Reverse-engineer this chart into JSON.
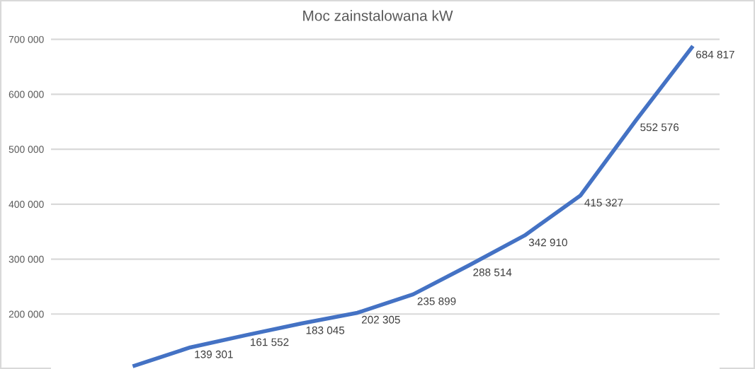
{
  "chart_data": {
    "type": "line",
    "title": "Moc zainstalowana kW",
    "categories": [
      null,
      null,
      null,
      null,
      null,
      null,
      null,
      null,
      null,
      null,
      null,
      null
    ],
    "series": [
      {
        "color": "#4472c4",
        "values": [
          null,
          106000,
          139301,
          161552,
          183045,
          202305,
          235899,
          288514,
          342910,
          415327,
          552576,
          684817
        ],
        "value_labels": [
          null,
          null,
          "139 301",
          "161 552",
          "183 045",
          "202 305",
          "235 899",
          "288 514",
          "342 910",
          "415 327",
          "552 576",
          "684 817"
        ]
      }
    ],
    "ylim": [
      100000,
      720000
    ],
    "yticks": [
      {
        "value": 200000,
        "label": "200 000"
      },
      {
        "value": 300000,
        "label": "300 000"
      },
      {
        "value": 400000,
        "label": "400 000"
      },
      {
        "value": 500000,
        "label": "500 000"
      },
      {
        "value": 600000,
        "label": "600 000"
      },
      {
        "value": 700000,
        "label": "700 000"
      }
    ],
    "grid": "y",
    "tick_labels": "y",
    "legend": false,
    "marker": "none",
    "line_style": "solid"
  }
}
